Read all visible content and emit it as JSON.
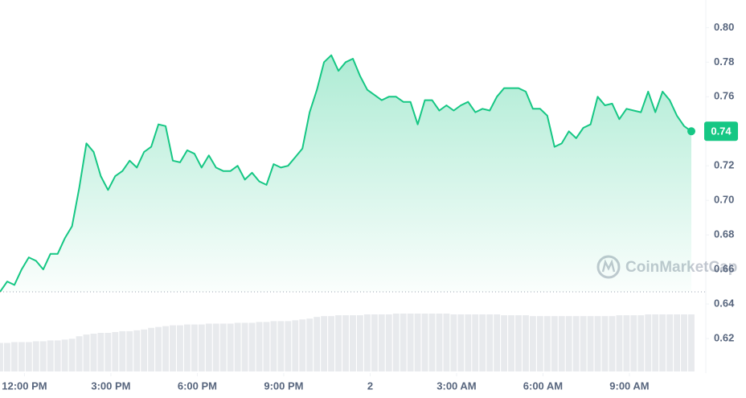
{
  "chart_data": {
    "type": "line",
    "watermark": "CoinMarketCap",
    "color": "#16c784",
    "down_color": "#ea3943",
    "x": [
      11.15,
      11.4,
      11.65,
      11.9,
      12.15,
      12.4,
      12.65,
      12.9,
      13.15,
      13.4,
      13.65,
      13.9,
      14.15,
      14.4,
      14.65,
      14.9,
      15.15,
      15.4,
      15.65,
      15.9,
      16.15,
      16.4,
      16.65,
      16.9,
      17.15,
      17.4,
      17.65,
      17.9,
      18.15,
      18.4,
      18.65,
      18.9,
      19.15,
      19.4,
      19.65,
      19.9,
      20.15,
      20.4,
      20.65,
      20.9,
      21.15,
      21.4,
      21.65,
      21.9,
      22.15,
      22.4,
      22.65,
      22.9,
      23.15,
      23.4,
      23.65,
      23.9,
      24.15,
      24.4,
      24.65,
      24.9,
      25.15,
      25.4,
      25.65,
      25.9,
      26.15,
      26.4,
      26.65,
      26.9,
      27.15,
      27.4,
      27.65,
      27.9,
      28.15,
      28.4,
      28.65,
      28.9,
      29.15,
      29.4,
      29.65,
      29.9,
      30.15,
      30.4,
      30.65,
      30.9,
      31.15,
      31.4,
      31.65,
      31.9,
      32.15,
      32.4,
      32.65,
      32.9,
      33.15,
      33.4,
      33.65,
      33.9,
      34.15,
      34.4,
      34.65,
      34.9,
      35.15
    ],
    "values": [
      0.647,
      0.653,
      0.651,
      0.66,
      0.667,
      0.665,
      0.66,
      0.669,
      0.669,
      0.678,
      0.685,
      0.707,
      0.733,
      0.728,
      0.714,
      0.706,
      0.714,
      0.717,
      0.723,
      0.719,
      0.728,
      0.731,
      0.744,
      0.743,
      0.723,
      0.722,
      0.729,
      0.727,
      0.719,
      0.726,
      0.719,
      0.717,
      0.717,
      0.72,
      0.712,
      0.716,
      0.711,
      0.709,
      0.721,
      0.719,
      0.72,
      0.725,
      0.73,
      0.751,
      0.764,
      0.78,
      0.784,
      0.775,
      0.78,
      0.782,
      0.772,
      0.764,
      0.761,
      0.758,
      0.76,
      0.76,
      0.757,
      0.757,
      0.744,
      0.758,
      0.758,
      0.752,
      0.755,
      0.752,
      0.755,
      0.757,
      0.751,
      0.753,
      0.752,
      0.76,
      0.765,
      0.765,
      0.765,
      0.763,
      0.753,
      0.753,
      0.749,
      0.731,
      0.733,
      0.74,
      0.736,
      0.742,
      0.744,
      0.76,
      0.755,
      0.756,
      0.747,
      0.753,
      0.752,
      0.751,
      0.763,
      0.751,
      0.763,
      0.758,
      0.749,
      0.743,
      0.74
    ],
    "volume": [
      34,
      34,
      35,
      35,
      35,
      36,
      36,
      37,
      37,
      38,
      39,
      42,
      44,
      45,
      46,
      46,
      47,
      48,
      48,
      49,
      50,
      52,
      53,
      54,
      55,
      55,
      56,
      56,
      56,
      57,
      57,
      57,
      57,
      58,
      58,
      58,
      59,
      59,
      60,
      60,
      60,
      61,
      62,
      63,
      65,
      66,
      66,
      67,
      67,
      67,
      67,
      68,
      68,
      68,
      68,
      69,
      69,
      69,
      69,
      69,
      69,
      69,
      69,
      68,
      68,
      68,
      68,
      68,
      68,
      68,
      67,
      67,
      67,
      67,
      66,
      66,
      66,
      66,
      66,
      66,
      66,
      66,
      66,
      66,
      66,
      66,
      67,
      67,
      67,
      67,
      68,
      68,
      68,
      68,
      68,
      68,
      68
    ],
    "current_price": 0.74,
    "xlim": [
      11.15,
      35.15
    ],
    "xticks": [
      {
        "value": 12,
        "label": "12:00 PM"
      },
      {
        "value": 15,
        "label": "3:00 PM"
      },
      {
        "value": 18,
        "label": "6:00 PM"
      },
      {
        "value": 21,
        "label": "9:00 PM"
      },
      {
        "value": 24,
        "label": "2"
      },
      {
        "value": 27,
        "label": "3:00 AM"
      },
      {
        "value": 30,
        "label": "6:00 AM"
      },
      {
        "value": 33,
        "label": "9:00 AM"
      }
    ],
    "ylim": [
      0.6,
      0.816
    ],
    "yticks": [
      0.62,
      0.64,
      0.66,
      0.68,
      {
        "value": 0.7,
        "label": "0.70"
      },
      0.72,
      0.74,
      0.76,
      0.78,
      {
        "value": 0.8,
        "label": "0.80"
      }
    ]
  }
}
